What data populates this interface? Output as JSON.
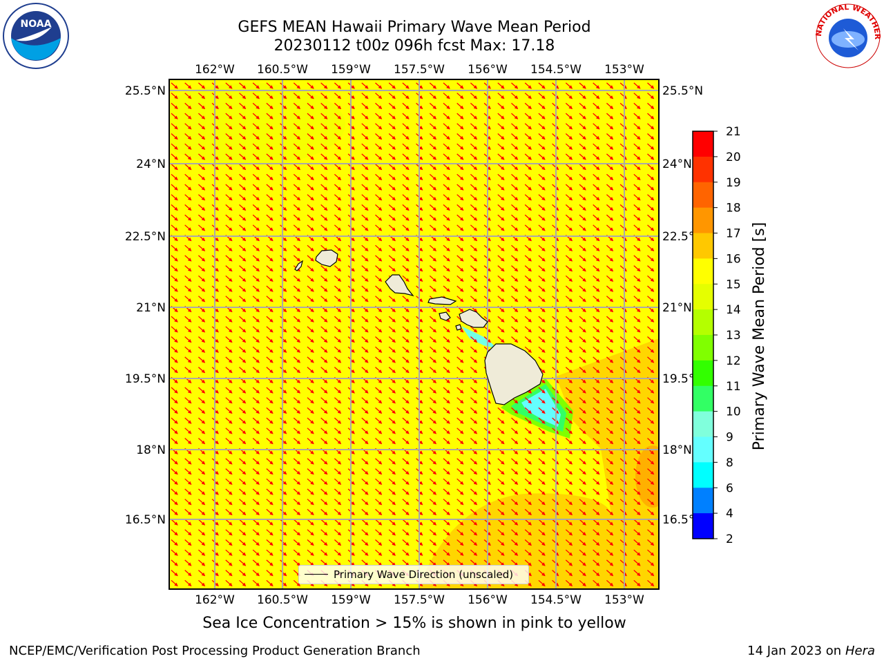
{
  "title_line1": "GEFS MEAN Hawaii Primary Wave Mean Period",
  "title_line2": "20230112 t00z 096h fcst   Max: 17.18",
  "logos": {
    "left": "NOAA",
    "right_text": "NATIONAL WEATHER SERVICE"
  },
  "colors": {
    "field_main": "#ffff00",
    "field_high": "#ffc800",
    "arrows": "#ff0000",
    "land": "#efebd8",
    "gridlines": "#a9a9a9"
  },
  "map": {
    "lon_ticks": [
      "162°W",
      "160.5°W",
      "159°W",
      "157.5°W",
      "156°W",
      "154.5°W",
      "153°W"
    ],
    "lat_ticks": [
      "25.5°N",
      "24°N",
      "22.5°N",
      "21°N",
      "19.5°N",
      "18°N",
      "16.5°N"
    ],
    "legend_label": "Primary Wave Direction (unscaled)"
  },
  "colorbar": {
    "label": "Primary Wave Mean Period [s]",
    "ticks": [
      "21",
      "20",
      "19",
      "18",
      "17",
      "16",
      "15",
      "14",
      "13",
      "12",
      "11",
      "10",
      "9",
      "8",
      "6",
      "4",
      "2"
    ],
    "colors": [
      "#ff0000",
      "#ff3200",
      "#ff6400",
      "#ff9600",
      "#ffc800",
      "#ffff00",
      "#e5ff00",
      "#b4ff00",
      "#80ff00",
      "#32ff00",
      "#32ff64",
      "#80ffdc",
      "#64ffff",
      "#00ffff",
      "#0080ff",
      "#0000ff"
    ]
  },
  "caption": "Sea Ice Concentration > 15% is shown in pink to yellow",
  "footer_left": "NCEP/EMC/Verification Post Processing Product Generation Branch",
  "footer_right_prefix": "14 Jan 2023 on ",
  "footer_right_host": "Hera"
}
